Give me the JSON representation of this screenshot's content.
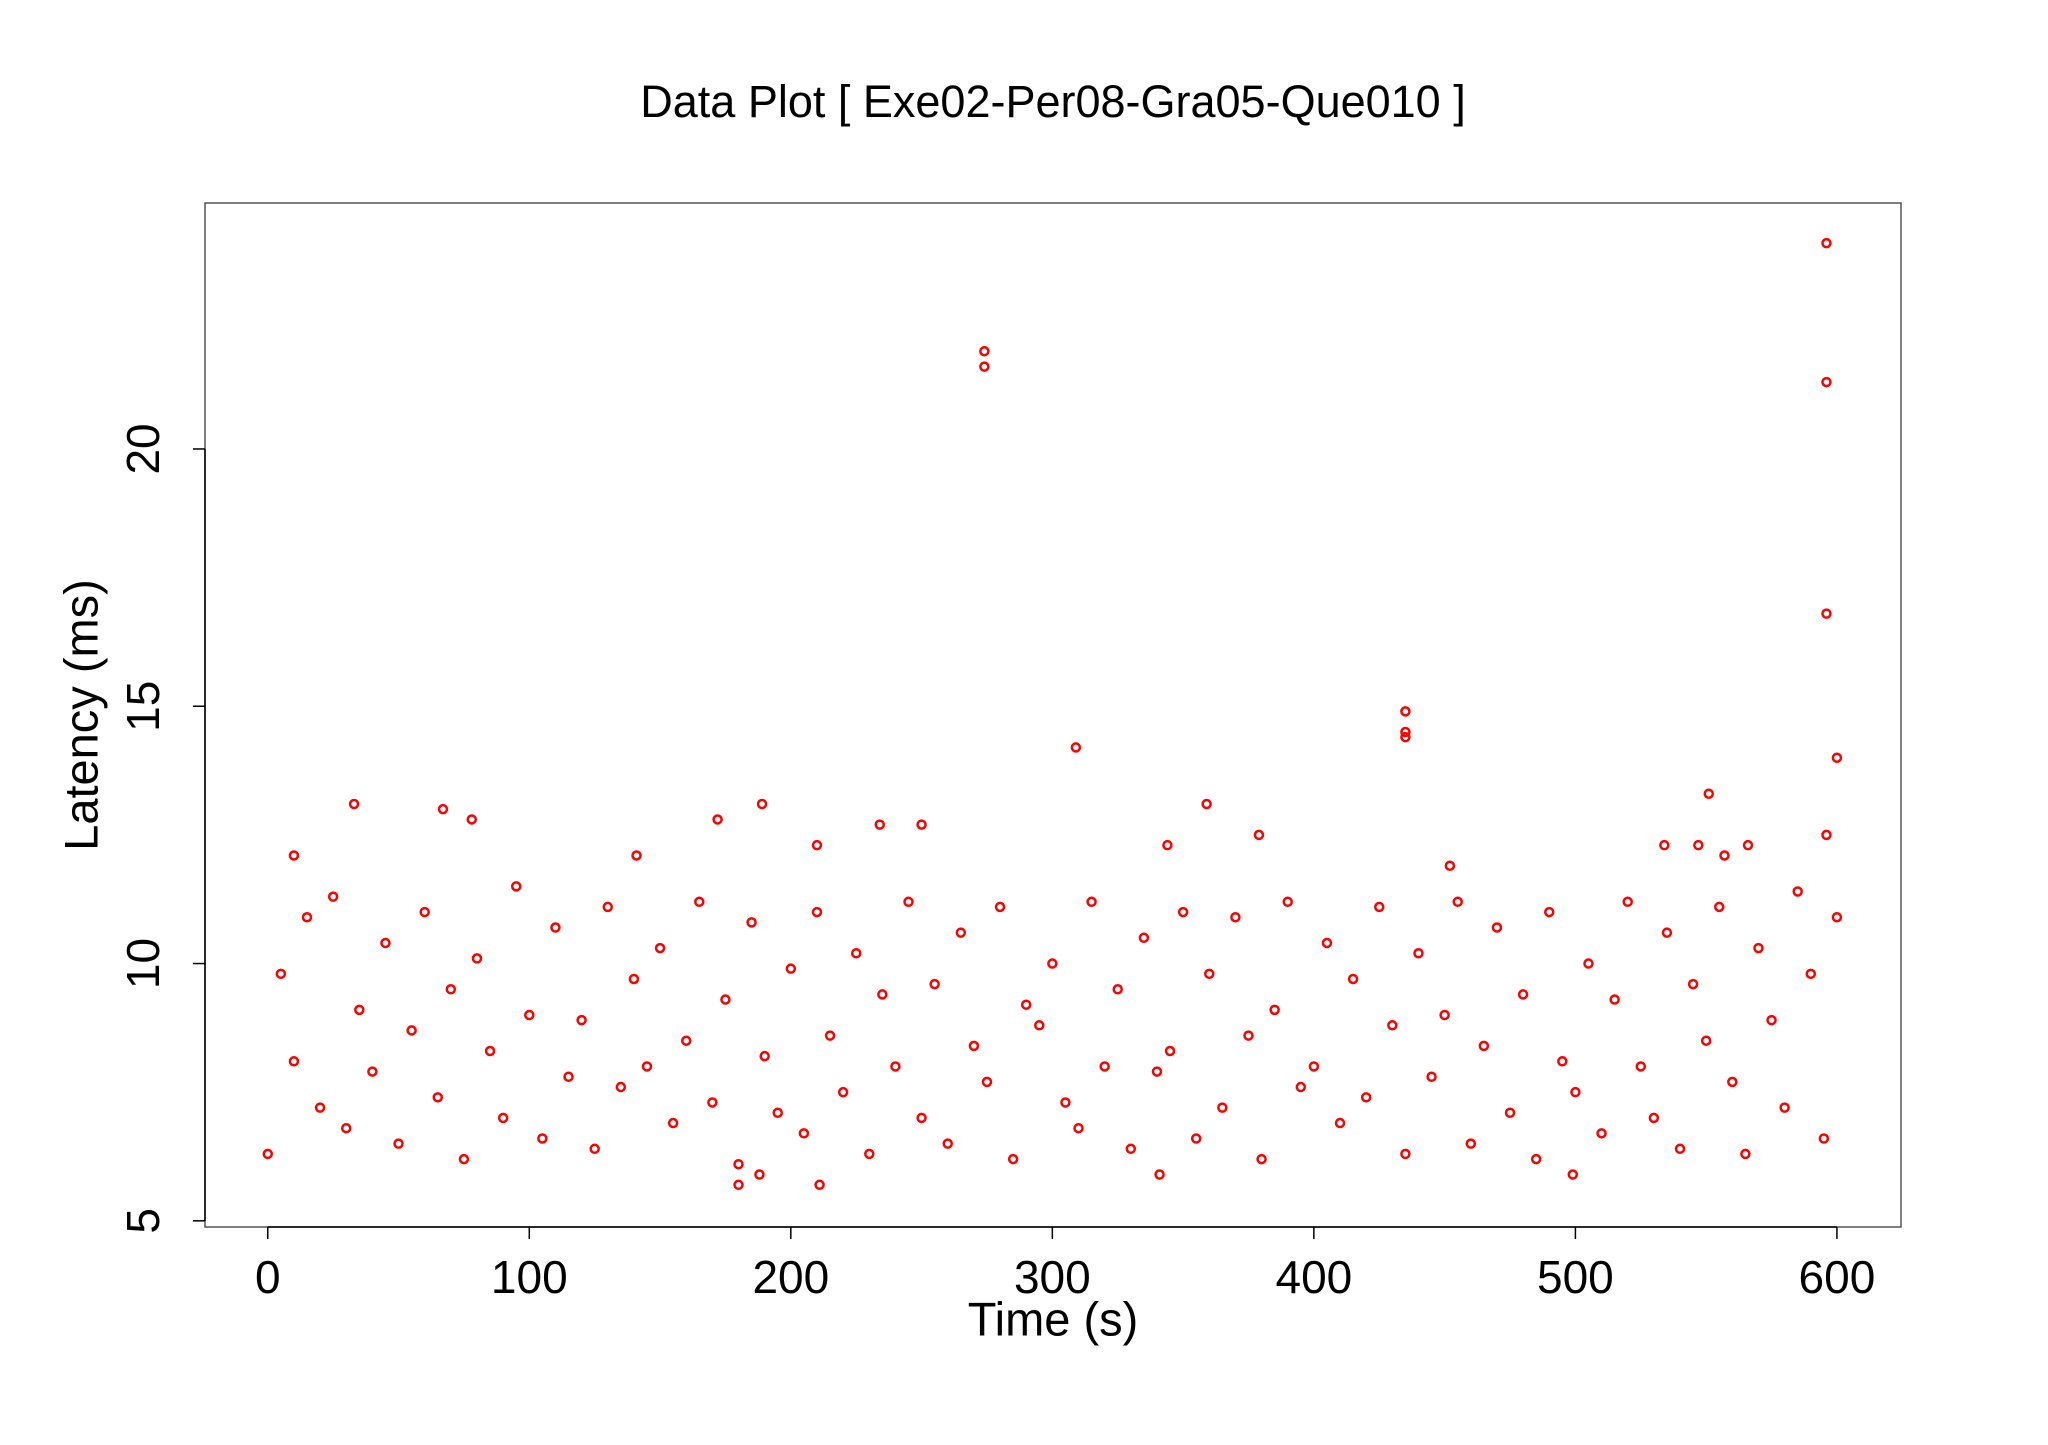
{
  "chart_data": {
    "type": "scatter",
    "title": "Data Plot [ Exe02-Per08-Gra05-Que010 ]",
    "x_label": "Time (s)",
    "y_label": "Latency (ms)",
    "color": "#ff0000",
    "xlim": [
      -24,
      624.5
    ],
    "ylim": [
      4.88,
      24.78
    ],
    "xticks": [
      0,
      100,
      200,
      300,
      400,
      500,
      600
    ],
    "yticks": [
      5,
      10,
      15,
      20
    ],
    "series": [
      {
        "name": "latency",
        "color": "#ff0000",
        "x": [
          0,
          5,
          10,
          15,
          20,
          25,
          30,
          35,
          40,
          45,
          50,
          55,
          60,
          65,
          70,
          75,
          80,
          85,
          90,
          95,
          100,
          105,
          110,
          115,
          120,
          125,
          130,
          135,
          140,
          145,
          150,
          155,
          160,
          165,
          170,
          175,
          180,
          185,
          190,
          195,
          200,
          205,
          210,
          215,
          220,
          225,
          230,
          235,
          240,
          245,
          250,
          255,
          260,
          265,
          270,
          275,
          280,
          285,
          290,
          295,
          300,
          305,
          310,
          315,
          320,
          325,
          330,
          335,
          340,
          345,
          350,
          355,
          360,
          365,
          370,
          375,
          380,
          385,
          390,
          395,
          400,
          405,
          410,
          415,
          420,
          425,
          430,
          435,
          440,
          445,
          450,
          455,
          460,
          465,
          470,
          475,
          480,
          485,
          490,
          495,
          500,
          505,
          510,
          515,
          520,
          525,
          530,
          535,
          540,
          545,
          550,
          555,
          560,
          565,
          570,
          575,
          580,
          585,
          590,
          595,
          600,
          274,
          274,
          596,
          596,
          596,
          309,
          435,
          435,
          435,
          600,
          551,
          33,
          189,
          359,
          67,
          78,
          172,
          234,
          250,
          379,
          596,
          210,
          344,
          534,
          547,
          566,
          557,
          10,
          141,
          452,
          180,
          211,
          188,
          341,
          499
        ],
        "y": [
          6.3,
          9.8,
          8.1,
          10.9,
          7.2,
          11.3,
          6.8,
          9.1,
          7.9,
          10.4,
          6.5,
          8.7,
          11.0,
          7.4,
          9.5,
          6.2,
          10.1,
          8.3,
          7.0,
          11.5,
          9.0,
          6.6,
          10.7,
          7.8,
          8.9,
          6.4,
          11.1,
          7.6,
          9.7,
          8.0,
          10.3,
          6.9,
          8.5,
          11.2,
          7.3,
          9.3,
          6.1,
          10.8,
          8.2,
          7.1,
          9.9,
          6.7,
          11.0,
          8.6,
          7.5,
          10.2,
          6.3,
          9.4,
          8.0,
          11.2,
          7.0,
          9.6,
          6.5,
          10.6,
          8.4,
          7.7,
          11.1,
          6.2,
          9.2,
          8.8,
          10.0,
          7.3,
          6.8,
          11.2,
          8.0,
          9.5,
          6.4,
          10.5,
          7.9,
          8.3,
          11.0,
          6.6,
          9.8,
          7.2,
          10.9,
          8.6,
          6.2,
          9.1,
          11.2,
          7.6,
          8.0,
          10.4,
          6.9,
          9.7,
          7.4,
          11.1,
          8.8,
          6.3,
          10.2,
          7.8,
          9.0,
          11.2,
          6.5,
          8.4,
          10.7,
          7.1,
          9.4,
          6.2,
          11.0,
          8.1,
          7.5,
          10.0,
          6.7,
          9.3,
          11.2,
          8.0,
          7.0,
          10.6,
          6.4,
          9.6,
          8.5,
          11.1,
          7.7,
          6.3,
          10.3,
          8.9,
          7.2,
          11.4,
          9.8,
          6.6,
          10.9,
          21.9,
          21.6,
          24.0,
          21.3,
          16.8,
          14.2,
          14.9,
          14.5,
          14.4,
          14.0,
          13.3,
          13.1,
          13.1,
          13.1,
          13.0,
          12.8,
          12.8,
          12.7,
          12.7,
          12.5,
          12.5,
          12.3,
          12.3,
          12.3,
          12.3,
          12.3,
          12.1,
          12.1,
          12.1,
          11.9,
          5.7,
          5.7,
          5.9,
          5.9,
          5.9
        ]
      }
    ]
  }
}
